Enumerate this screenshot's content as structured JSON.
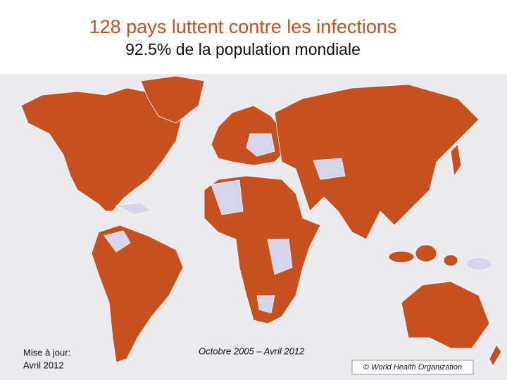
{
  "title": "128 pays luttent contre les infections",
  "subtitle": "92.5% de la population mondiale",
  "update": {
    "label": "Mise à jour:",
    "date": "Avril 2012"
  },
  "period": "Octobre 2005 – Avril 2012",
  "credit": "© World Health Organization"
}
